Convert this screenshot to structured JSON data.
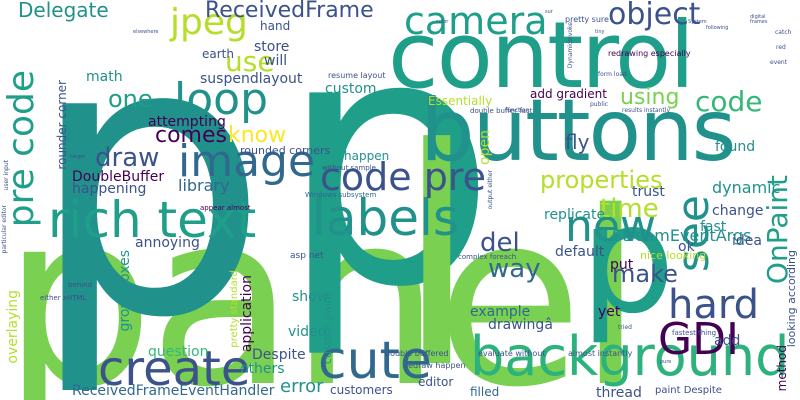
{
  "palette": {
    "dark_purple": "#440154",
    "indigo": "#3b528b",
    "blue": "#31688e",
    "teal": "#21918c",
    "sea_green": "#1f9e89",
    "green": "#35b779",
    "light_green": "#6ece58",
    "lime": "#b5de2b",
    "yellow": "#fde725"
  },
  "words": {
    "panel": "panel",
    "p_left": "p",
    "p_mid": "p",
    "p_small": "p",
    "l_big": "l",
    "control": "control",
    "buttons": "buttons",
    "rich_text": "rich text",
    "labels": "labels",
    "background": "background",
    "create": "create",
    "cute": "cute",
    "image": "image",
    "code_pre": "code pre",
    "pre_code": "pre code",
    "new": "new",
    "see": "see",
    "loop": "loop",
    "camera": "camera",
    "jpeg": "jpeg",
    "gdi": "GDI",
    "hard": "hard",
    "object": "object",
    "onpaint": "OnPaint",
    "delegate": "Delegate",
    "received_frame": "ReceivedFrame",
    "use": "use",
    "one": "one",
    "draw": "draw",
    "comes": "comes",
    "know": "know",
    "doublebuffer": "DoubleBuffer",
    "happening": "happening",
    "properties": "properties",
    "time": "time",
    "del": "del",
    "way": "way",
    "make": "make",
    "code": "code",
    "using": "using",
    "fly": "fly",
    "library": "library",
    "trust": "trust",
    "dynamic": "dynamic",
    "stream_event_args": "StreamEventArgs",
    "replicate": "replicate",
    "default": "default",
    "fast": "fast",
    "change": "change",
    "idea": "idea",
    "ok": "ok",
    "put": "put",
    "nice_looking": "nice looking",
    "annoying": "annoying",
    "groupboxes": "groupboxes",
    "application": "application",
    "show": "show",
    "video": "video",
    "question": "question",
    "despite": "Despite",
    "others": "others",
    "error": "error",
    "received_frame_event_handler": "ReceivedFrameEventHandler",
    "customers": "customers",
    "editor": "editor",
    "filled": "filled",
    "thread": "thread",
    "example": "example",
    "drawing": "drawingâ",
    "yet": "yet",
    "add": "add",
    "method": "method",
    "looking_according": "looking according",
    "overlaying": "overlaying",
    "rounder_corner": "rounder corner",
    "math": "math",
    "suspendlayout": "suspendlayout",
    "attempting": "attempting",
    "rounded_corners": "rounded corners",
    "essentially": "Essentially",
    "add_gradient": "add gradient",
    "open": "open",
    "custom": "custom",
    "happen": "happen",
    "store": "store",
    "will": "will",
    "earth": "earth",
    "hand": "hand",
    "found": "found",
    "pretty_standard": "pretty standard",
    "custom_paint": "custom paint",
    "asp_net": "asp net",
    "pretty_sure": "pretty sure",
    "redrawing_especially": "redrawing especially",
    "resume_layout": "resume layout",
    "without_sample": "without sample",
    "double_buffer_fast": "double buffer fast",
    "appear_almost": "appear almost",
    "windows_subsystem": "Windows subsystem",
    "complex_foreach": "complex foreach",
    "double_buffered": "double buffered",
    "evaluate_without": "evaluate without",
    "almost_instantly": "almost instantly",
    "redraw_happen": "redraw happen",
    "paint_despite": "paint Despite",
    "fastest_thing": "fastest thing",
    "either_xhtml": "either xHTML",
    "behind": "behind",
    "particular_editor": "particular editor",
    "user_input": "user input",
    "results_instantly": "results instantly",
    "form_load": "form load",
    "output_either": "output either",
    "function": "function",
    "public": "public",
    "tried": "tried",
    "red": "red",
    "event": "event",
    "catch": "catch",
    "digital": "digital",
    "frames": "frames",
    "dynamicinvoke": "DynamicInvoke",
    "following": "following",
    "system": "System",
    "target": "target",
    "elsewhere": "elsewhere",
    "color": "color",
    "sur": "sur",
    "tiny": "tiny",
    "pure": "pure"
  }
}
